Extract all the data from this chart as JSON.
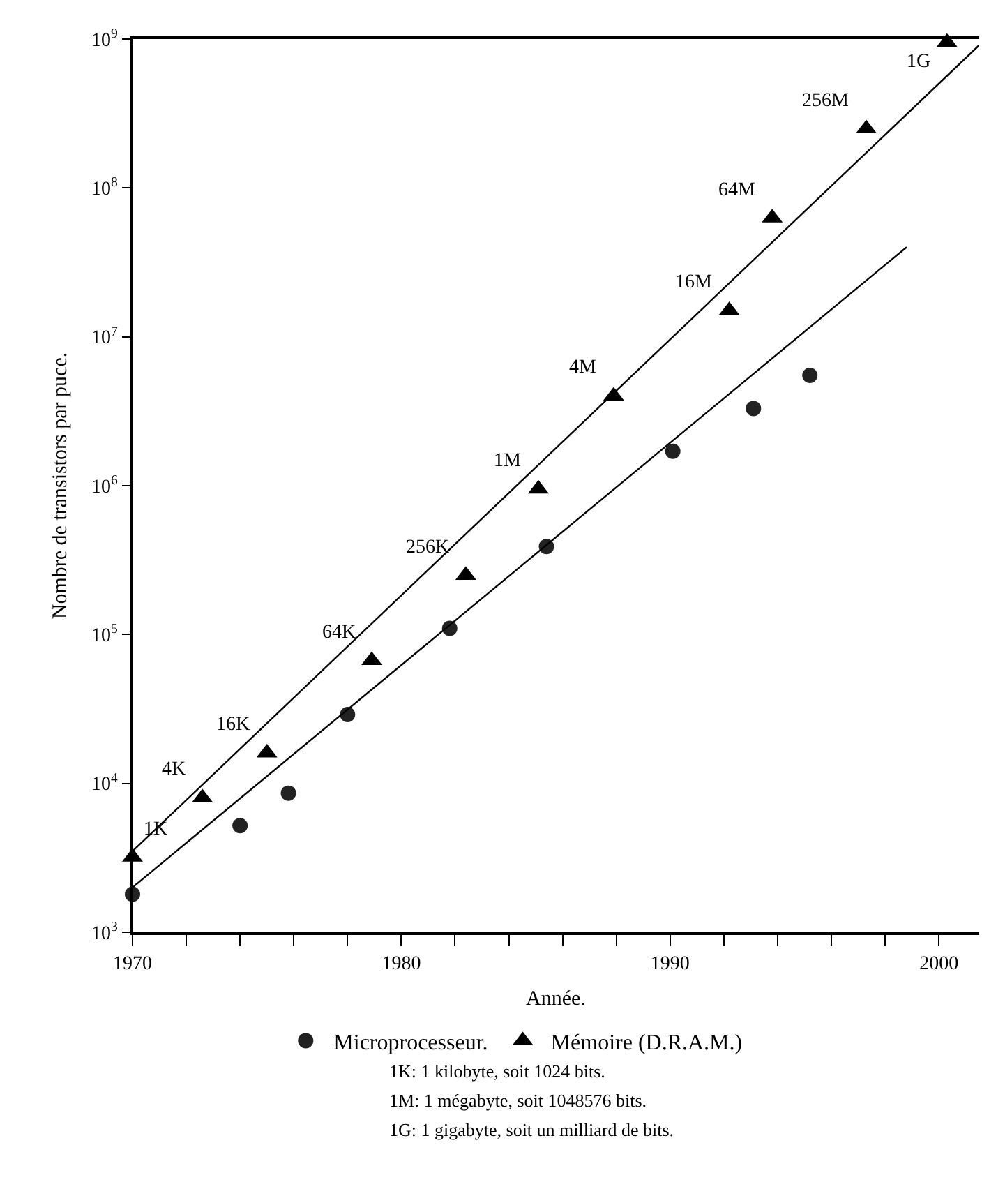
{
  "chart_data": {
    "type": "scatter",
    "xlabel": "Année.",
    "ylabel": "Nombre de transistors par puce.",
    "log": "y",
    "grid": false,
    "legend": "bottom",
    "xlim": [
      1970,
      2001.5
    ],
    "xticks": [
      1970,
      {
        "value": 1972,
        "label": null
      },
      {
        "value": 1974,
        "label": null
      },
      {
        "value": 1976,
        "label": null
      },
      {
        "value": 1978,
        "label": null
      },
      1980,
      {
        "value": 1982,
        "label": null
      },
      {
        "value": 1984,
        "label": null
      },
      {
        "value": 1986,
        "label": null
      },
      {
        "value": 1988,
        "label": null
      },
      1990,
      {
        "value": 1992,
        "label": null
      },
      {
        "value": 1994,
        "label": null
      },
      {
        "value": 1996,
        "label": null
      },
      {
        "value": 1998,
        "label": null
      },
      2000
    ],
    "ylim": [
      1000,
      1000000000
    ],
    "yticks": [
      {
        "value": 1000,
        "label": "10$^{3}$"
      },
      {
        "value": 10000,
        "label": "10$^{4}$"
      },
      {
        "value": 100000,
        "label": "10$^{5}$"
      },
      {
        "value": 1000000,
        "label": "10$^{6}$"
      },
      {
        "value": 10000000,
        "label": "10$^{7}$"
      },
      {
        "value": 100000000,
        "label": "10$^{8}$"
      },
      {
        "value": 1000000000,
        "label": "10$^{9}$"
      }
    ],
    "series": [
      {
        "name": "Microprocesseur.",
        "type": "scatter",
        "marker": "circle",
        "color": "#222222",
        "x": [
          1970,
          1974,
          1975.8,
          1978,
          1981.8,
          1985.4,
          1990.1,
          1993.1,
          1995.2
        ],
        "values": [
          1800,
          5200,
          8600,
          29000,
          110000,
          390000,
          1700000,
          3300000,
          5500000
        ]
      },
      {
        "name": "Mémoire (D.R.A.M.)",
        "type": "scatter",
        "marker": "triangle",
        "color": "#000000",
        "x": [
          1970,
          1972.6,
          1975,
          1978.9,
          1982.4,
          1985.1,
          1987.9,
          1992.2,
          1993.8,
          1997.3,
          2000.3
        ],
        "values": [
          3200,
          8000,
          16000,
          67000,
          250000,
          950000,
          4000000,
          15000000,
          63000000,
          250000000,
          950000000
        ]
      },
      {
        "type": "line",
        "marker": "none",
        "line_style": "solid",
        "color": "#000000",
        "x": [
          1970,
          1998.8
        ],
        "values": [
          2000,
          40000000
        ]
      },
      {
        "type": "line",
        "marker": "none",
        "line_style": "solid",
        "color": "#000000",
        "x": [
          1970,
          2001.5
        ],
        "values": [
          3500,
          910000000
        ]
      }
    ],
    "annotations": [
      {
        "text": "1K",
        "x": 1970,
        "y": 3200
      },
      {
        "text": "4K",
        "x": 1972.6,
        "y": 8000
      },
      {
        "text": "16K",
        "x": 1975,
        "y": 16000
      },
      {
        "text": "64K",
        "x": 1978.9,
        "y": 67000
      },
      {
        "text": "256K",
        "x": 1982.4,
        "y": 250000
      },
      {
        "text": "1M",
        "x": 1985.1,
        "y": 950000
      },
      {
        "text": "4M",
        "x": 1987.9,
        "y": 4000000
      },
      {
        "text": "16M",
        "x": 1992.2,
        "y": 15000000
      },
      {
        "text": "64M",
        "x": 1993.8,
        "y": 63000000
      },
      {
        "text": "256M",
        "x": 1997.3,
        "y": 250000000
      },
      {
        "text": "1G",
        "x": 2000.3,
        "y": 950000000
      },
      "1K: 1 kilobyte, soit 1024 bits.",
      "1M: 1 mégabyte, soit 1048576 bits.",
      "1G: 1 gigabyte, soit un milliard de bits."
    ]
  }
}
